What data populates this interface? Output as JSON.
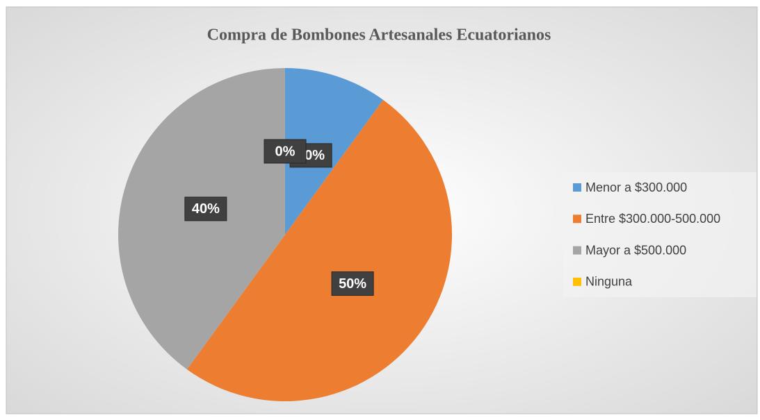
{
  "chart_data": {
    "type": "pie",
    "title": "Compra de Bombones Artesanales Ecuatorianos",
    "categories": [
      "Menor a $300.000",
      "Entre $300.000-500.000",
      "Mayor a $500.000",
      "Ninguna"
    ],
    "values": [
      10,
      50,
      40,
      0
    ],
    "value_labels": [
      "10%",
      "50%",
      "40%",
      "0%"
    ],
    "colors": [
      "#5b9bd5",
      "#ed7d31",
      "#a5a5a5",
      "#ffc000"
    ],
    "legend": "right"
  }
}
